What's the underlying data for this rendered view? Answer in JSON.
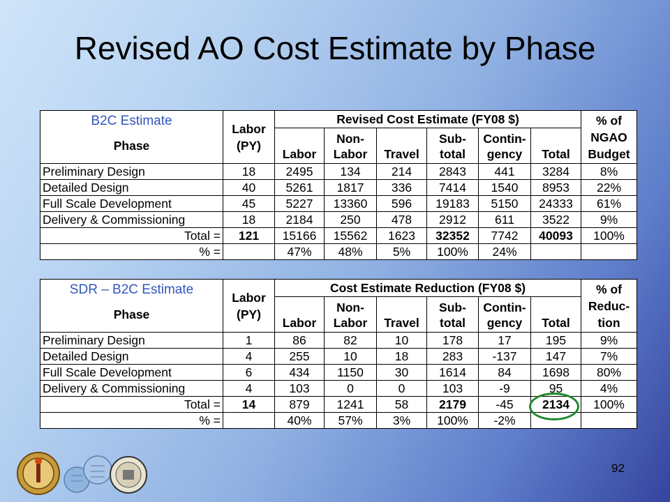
{
  "slide": {
    "title": "Revised AO Cost Estimate by Phase",
    "page_number": "92"
  },
  "table1": {
    "corner_label": "B2C Estimate",
    "phase_header": "Phase",
    "labor_header": [
      "Labor",
      "(PY)"
    ],
    "group_header": "Revised Cost Estimate (FY08 $)",
    "pct_header": [
      "% of",
      "NGAO",
      "Budget"
    ],
    "sub_headers": [
      [
        "",
        "Labor"
      ],
      [
        "Non-",
        "Labor"
      ],
      [
        "",
        "Travel"
      ],
      [
        "Sub-",
        "total"
      ],
      [
        "Contin-",
        "gency"
      ],
      [
        "",
        "Total"
      ]
    ],
    "rows": [
      [
        "Preliminary Design",
        "18",
        "2495",
        "134",
        "214",
        "2843",
        "441",
        "3284",
        "8%"
      ],
      [
        "Detailed Design",
        "40",
        "5261",
        "1817",
        "336",
        "7414",
        "1540",
        "8953",
        "22%"
      ],
      [
        "Full Scale Development",
        "45",
        "5227",
        "13360",
        "596",
        "19183",
        "5150",
        "24333",
        "61%"
      ],
      [
        "Delivery & Commissioning",
        "18",
        "2184",
        "250",
        "478",
        "2912",
        "611",
        "3522",
        "9%"
      ]
    ],
    "total_row": [
      "Total =",
      "121",
      "15166",
      "15562",
      "1623",
      "32352",
      "7742",
      "40093",
      "100%"
    ],
    "pct_row": [
      "% =",
      "",
      "47%",
      "48%",
      "5%",
      "100%",
      "24%",
      "",
      ""
    ]
  },
  "table2": {
    "corner_label": "SDR – B2C Estimate",
    "phase_header": "Phase",
    "labor_header": [
      "Labor",
      "(PY)"
    ],
    "group_header": "Cost Estimate Reduction (FY08 $)",
    "pct_header": [
      "% of",
      "Reduc-",
      "tion"
    ],
    "sub_headers": [
      [
        "",
        "Labor"
      ],
      [
        "Non-",
        "Labor"
      ],
      [
        "",
        "Travel"
      ],
      [
        "Sub-",
        "total"
      ],
      [
        "Contin-",
        "gency"
      ],
      [
        "",
        "Total"
      ]
    ],
    "rows": [
      [
        "Preliminary Design",
        "1",
        "86",
        "82",
        "10",
        "178",
        "17",
        "195",
        "9%"
      ],
      [
        "Detailed Design",
        "4",
        "255",
        "10",
        "18",
        "283",
        "-137",
        "147",
        "7%"
      ],
      [
        "Full Scale Development",
        "6",
        "434",
        "1150",
        "30",
        "1614",
        "84",
        "1698",
        "80%"
      ],
      [
        "Delivery & Commissioning",
        "4",
        "103",
        "0",
        "0",
        "103",
        "-9",
        "95",
        "4%"
      ]
    ],
    "total_row": [
      "Total =",
      "14",
      "879",
      "1241",
      "58",
      "2179",
      "-45",
      "2134",
      "100%"
    ],
    "pct_row": [
      "% =",
      "",
      "40%",
      "57%",
      "3%",
      "100%",
      "-2%",
      "",
      ""
    ]
  },
  "logos": [
    "caltech-seal-icon",
    "segmented-mirror-icon",
    "uc-seal-icon"
  ]
}
